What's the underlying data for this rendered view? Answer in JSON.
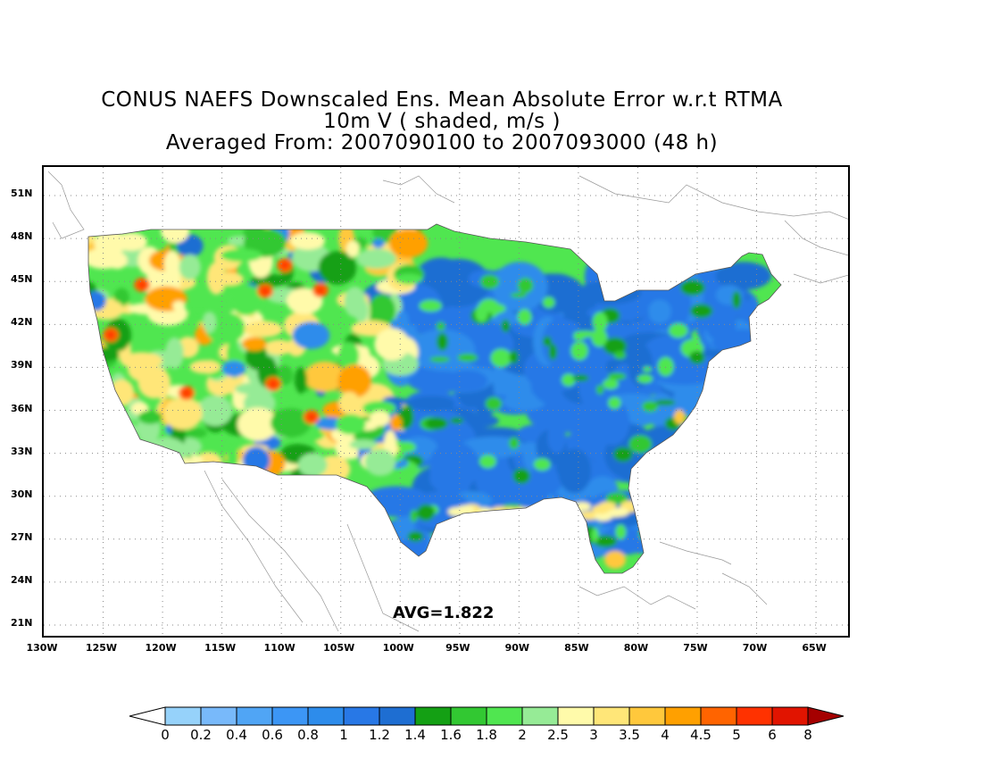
{
  "title": {
    "line1": "CONUS NAEFS Downscaled Ens. Mean Absolute Error w.r.t RTMA",
    "line2": "10m V ( shaded, m/s )",
    "line3": "Averaged From: 2007090100 to 2007093000 (48 h)"
  },
  "avg_label": "AVG=1.822",
  "lat_labels": [
    "51N",
    "48N",
    "45N",
    "42N",
    "39N",
    "36N",
    "33N",
    "30N",
    "27N",
    "24N",
    "21N"
  ],
  "lat_values": [
    51,
    48,
    45,
    42,
    39,
    36,
    33,
    30,
    27,
    24,
    21
  ],
  "lon_labels": [
    "130W",
    "125W",
    "120W",
    "115W",
    "110W",
    "105W",
    "100W",
    "95W",
    "90W",
    "85W",
    "80W",
    "75W",
    "70W",
    "65W"
  ],
  "lon_values": [
    -130,
    -125,
    -120,
    -115,
    -110,
    -105,
    -100,
    -95,
    -90,
    -85,
    -80,
    -75,
    -70,
    -65
  ],
  "colorbar": {
    "labels": [
      "0",
      "0.2",
      "0.4",
      "0.6",
      "0.8",
      "1",
      "1.2",
      "1.4",
      "1.6",
      "1.8",
      "2",
      "2.5",
      "3",
      "3.5",
      "4",
      "4.5",
      "5",
      "6",
      "8"
    ],
    "colors": [
      "#ffffff",
      "#96d2fa",
      "#78b9fa",
      "#50a5f5",
      "#3c96f5",
      "#2d8ceb",
      "#2878e6",
      "#1e6ed2",
      "#14a014",
      "#32c832",
      "#50e650",
      "#96eb96",
      "#fffaaa",
      "#ffe678",
      "#ffc83c",
      "#ffa000",
      "#ff6400",
      "#ff3200",
      "#e11400",
      "#a50000"
    ]
  },
  "map": {
    "lat_range": [
      20,
      53
    ],
    "lon_range": [
      -130,
      -62
    ]
  }
}
